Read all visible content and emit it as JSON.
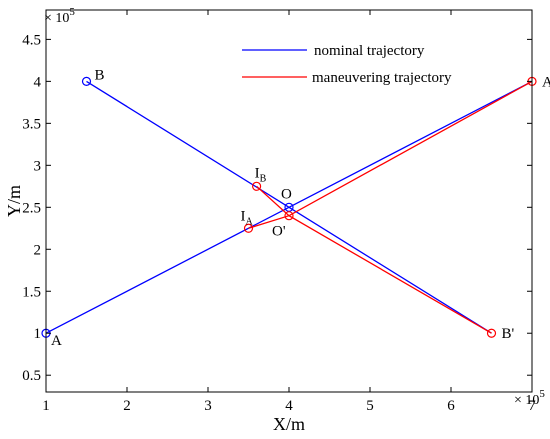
{
  "chart_data": {
    "type": "line",
    "xlabel": "X/m",
    "ylabel": "Y/m",
    "x_exponent_label": "× 10",
    "x_exponent_power": "5",
    "y_exponent_label": "× 10",
    "y_exponent_power": "5",
    "xlim": [
      1,
      7
    ],
    "ylim": [
      0.3,
      4.85
    ],
    "x_ticks": [
      1,
      2,
      3,
      4,
      5,
      6,
      7
    ],
    "x_tick_labels": [
      "1",
      "2",
      "3",
      "4",
      "5",
      "6",
      "7"
    ],
    "y_ticks": [
      0.5,
      1,
      1.5,
      2,
      2.5,
      3,
      3.5,
      4,
      4.5
    ],
    "y_tick_labels": [
      "0.5",
      "1",
      "1.5",
      "2",
      "2.5",
      "3",
      "3.5",
      "4",
      "4.5"
    ],
    "grid": false,
    "legend_placement": "top-right",
    "series": [
      {
        "name": "nominal trajectory",
        "color": "#0000ff",
        "segments": [
          [
            [
              1.0,
              1.0
            ],
            [
              4.0,
              2.5
            ],
            [
              7.0,
              4.0
            ]
          ],
          [
            [
              1.5,
              4.0
            ],
            [
              4.0,
              2.5
            ],
            [
              6.5,
              1.0
            ]
          ]
        ]
      },
      {
        "name": "maneuvering trajectory",
        "color": "#ff0000",
        "segments": [
          [
            [
              3.5,
              2.25
            ],
            [
              4.0,
              2.4
            ],
            [
              7.0,
              4.0
            ]
          ],
          [
            [
              3.6,
              2.75
            ],
            [
              4.0,
              2.4
            ],
            [
              6.5,
              1.0
            ]
          ]
        ]
      }
    ],
    "markers": [
      {
        "label": "A",
        "x": 1.0,
        "y": 1.0,
        "color": "#0000ff"
      },
      {
        "label": "B",
        "x": 1.5,
        "y": 4.0,
        "color": "#0000ff"
      },
      {
        "label": "O",
        "x": 4.0,
        "y": 2.5,
        "color": "#0000ff"
      },
      {
        "label": "A'",
        "x": 7.0,
        "y": 4.0,
        "color": "#ff0000"
      },
      {
        "label": "B'",
        "x": 6.5,
        "y": 1.0,
        "color": "#ff0000"
      },
      {
        "label": "O'",
        "x": 4.0,
        "y": 2.4,
        "color": "#ff0000"
      },
      {
        "label": "I",
        "sub": "A",
        "x": 3.5,
        "y": 2.25,
        "color": "#ff0000"
      },
      {
        "label": "I",
        "sub": "B",
        "x": 3.6,
        "y": 2.75,
        "color": "#ff0000"
      }
    ]
  }
}
